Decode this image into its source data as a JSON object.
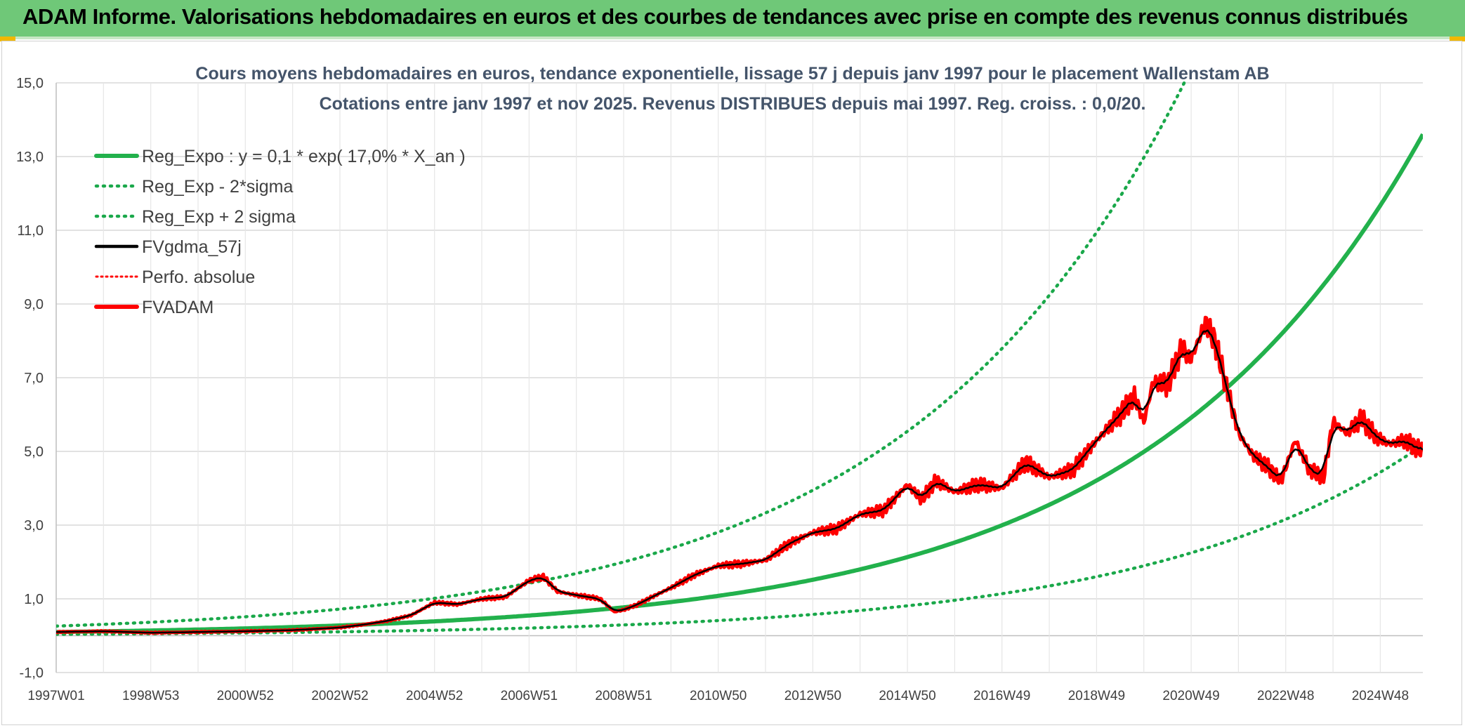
{
  "header": {
    "title": "ADAM Informe. Valorisations hebdomadaires en euros et des courbes de tendances avec prise en compte des revenus connus distribués"
  },
  "chart_data": {
    "type": "line",
    "title": "Cours moyens hebdomadaires en euros, tendance exponentielle, lissage 57 j depuis janv 1997 pour le placement Wallenstam AB",
    "subtitle": "Cotations entre janv 1997 et nov 2025. Revenus DISTRIBUES depuis mai 1997. Reg. croiss. : 0,0/20.",
    "ylim": [
      -1,
      15
    ],
    "xlim": [
      1997.0,
      2025.9
    ],
    "y_ticks": [
      "-1,0",
      "1,0",
      "3,0",
      "5,0",
      "7,0",
      "9,0",
      "11,0",
      "13,0",
      "15,0"
    ],
    "x_ticks": [
      "1997W01",
      "1998W53",
      "2000W52",
      "2002W52",
      "2004W52",
      "2006W51",
      "2008W51",
      "2010W50",
      "2012W50",
      "2014W50",
      "2016W49",
      "2018W49",
      "2020W49",
      "2022W48",
      "2024W48"
    ],
    "x_tick_years": [
      1997.0,
      1999.0,
      2001.0,
      2003.0,
      2005.0,
      2007.0,
      2009.0,
      2011.0,
      2013.0,
      2015.0,
      2017.0,
      2019.0,
      2021.0,
      2023.0,
      2025.0
    ],
    "legend": [
      "Reg_Expo : y = 0,1 * exp( 17,0% *  X_an )",
      "Reg_Exp - 2*sigma",
      "Reg_Exp + 2 sigma",
      "FVgdma_57j",
      "Perfo. absolue",
      "FVADAM"
    ],
    "colors": {
      "reg": "#22b14c",
      "band": "#1aa84a",
      "smooth": "#000000",
      "perfo": "#ff0000",
      "price": "#ff0000"
    },
    "regression": {
      "a": 0.1,
      "rate": 0.17,
      "lower_factor": 0.38,
      "upper_factor": 2.6
    },
    "series": [
      {
        "name": "FVADAM",
        "x": [
          1997.0,
          1998.0,
          1999.0,
          2000.0,
          2001.0,
          2002.0,
          2003.0,
          2003.5,
          2004.0,
          2004.5,
          2005.0,
          2005.5,
          2006.0,
          2006.5,
          2007.0,
          2007.3,
          2007.6,
          2008.0,
          2008.5,
          2008.8,
          2009.0,
          2009.3,
          2009.6,
          2010.0,
          2010.5,
          2011.0,
          2011.5,
          2012.0,
          2012.5,
          2013.0,
          2013.5,
          2014.0,
          2014.5,
          2015.0,
          2015.3,
          2015.6,
          2016.0,
          2016.5,
          2017.0,
          2017.5,
          2018.0,
          2018.5,
          2019.0,
          2019.5,
          2019.8,
          2020.0,
          2020.2,
          2020.5,
          2020.8,
          2021.0,
          2021.3,
          2021.5,
          2021.8,
          2022.0,
          2022.3,
          2022.6,
          2022.9,
          2023.2,
          2023.5,
          2023.8,
          2024.0,
          2024.3,
          2024.6,
          2024.9,
          2025.2,
          2025.5,
          2025.9
        ],
        "values": [
          0.1,
          0.12,
          0.08,
          0.1,
          0.12,
          0.15,
          0.22,
          0.3,
          0.4,
          0.55,
          0.9,
          0.85,
          1.0,
          1.05,
          1.5,
          1.6,
          1.2,
          1.1,
          1.0,
          0.65,
          0.7,
          0.85,
          1.05,
          1.3,
          1.65,
          1.9,
          1.95,
          2.05,
          2.5,
          2.8,
          2.9,
          3.3,
          3.4,
          4.1,
          3.7,
          4.2,
          3.9,
          4.1,
          4.0,
          4.7,
          4.3,
          4.5,
          5.3,
          6.0,
          6.5,
          5.8,
          6.9,
          6.8,
          7.8,
          7.5,
          8.5,
          8.0,
          6.5,
          5.5,
          4.9,
          4.6,
          4.2,
          5.3,
          4.5,
          4.3,
          5.8,
          5.5,
          5.9,
          5.4,
          5.2,
          5.3,
          5.0
        ]
      }
    ]
  }
}
